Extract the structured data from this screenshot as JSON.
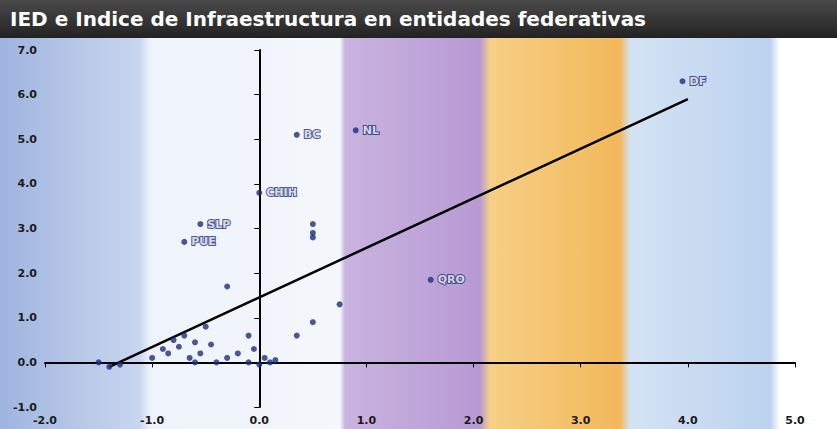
{
  "chart_data": {
    "type": "scatter",
    "title": "IED e Indice de Infraestructura en entidades federativas",
    "x": [
      3.95,
      0.35,
      0.9,
      0.0,
      -0.55,
      -0.7,
      1.6,
      0.5,
      0.5,
      0.5,
      -0.3,
      0.75,
      0.5,
      0.35,
      -0.1,
      -0.05,
      -1.5,
      -1.4,
      -1.3,
      -1.0,
      -0.9,
      -0.85,
      -0.8,
      -0.75,
      -0.7,
      -0.65,
      -0.6,
      -0.55,
      -0.5,
      -0.4,
      -0.3,
      -0.2,
      -0.1,
      0.0,
      0.05,
      0.15,
      0.1,
      -0.6,
      -0.45
    ],
    "values": [
      6.3,
      5.1,
      5.2,
      3.8,
      3.1,
      2.7,
      1.85,
      3.1,
      2.9,
      2.8,
      1.7,
      1.3,
      0.9,
      0.6,
      0.6,
      0.3,
      0.0,
      -0.1,
      -0.05,
      0.1,
      0.3,
      0.2,
      0.5,
      0.35,
      0.6,
      0.1,
      0.0,
      0.2,
      0.8,
      0.0,
      0.1,
      0.2,
      0.0,
      -0.05,
      0.1,
      0.05,
      0.0,
      0.45,
      0.4
    ],
    "point_labels": [
      "DF",
      "BC",
      "NL",
      "CHIH",
      "SLP",
      "PUE",
      "QRO",
      null,
      null,
      null,
      null,
      null,
      null,
      null,
      null,
      null,
      null,
      null,
      null,
      null,
      null,
      null,
      null,
      null,
      null,
      null,
      null,
      null,
      null,
      null,
      null,
      null,
      null,
      null,
      null,
      null,
      null,
      null,
      null
    ],
    "color": "#1c2f7a",
    "marker": "circle",
    "trend_line": {
      "x": [
        -1.4,
        4.0
      ],
      "values": [
        -0.1,
        5.9
      ],
      "color": "#000000",
      "line_style": "solid"
    },
    "xlim": [
      -2,
      5
    ],
    "xticks": [
      {
        "value": -2,
        "label": "-2.0"
      },
      {
        "value": -1,
        "label": "-1.0"
      },
      {
        "value": 0,
        "label": "0.0"
      },
      {
        "value": 1,
        "label": "1.0"
      },
      {
        "value": 2,
        "label": "2.0"
      },
      {
        "value": 3,
        "label": "3.0"
      },
      {
        "value": 4,
        "label": "4.0"
      },
      {
        "value": 5,
        "label": "5.0"
      }
    ],
    "ylim": [
      -1,
      7
    ],
    "yticks": [
      {
        "value": -1,
        "label": "-1.0"
      },
      {
        "value": 0,
        "label": "0.0"
      },
      {
        "value": 1,
        "label": "1.0"
      },
      {
        "value": 2,
        "label": "2.0"
      },
      {
        "value": 3,
        "label": "3.0"
      },
      {
        "value": 4,
        "label": "4.0"
      },
      {
        "value": 5,
        "label": "5.0"
      },
      {
        "value": 6,
        "label": "6.0"
      },
      {
        "value": 7,
        "label": "7.0"
      }
    ],
    "grid": false
  }
}
